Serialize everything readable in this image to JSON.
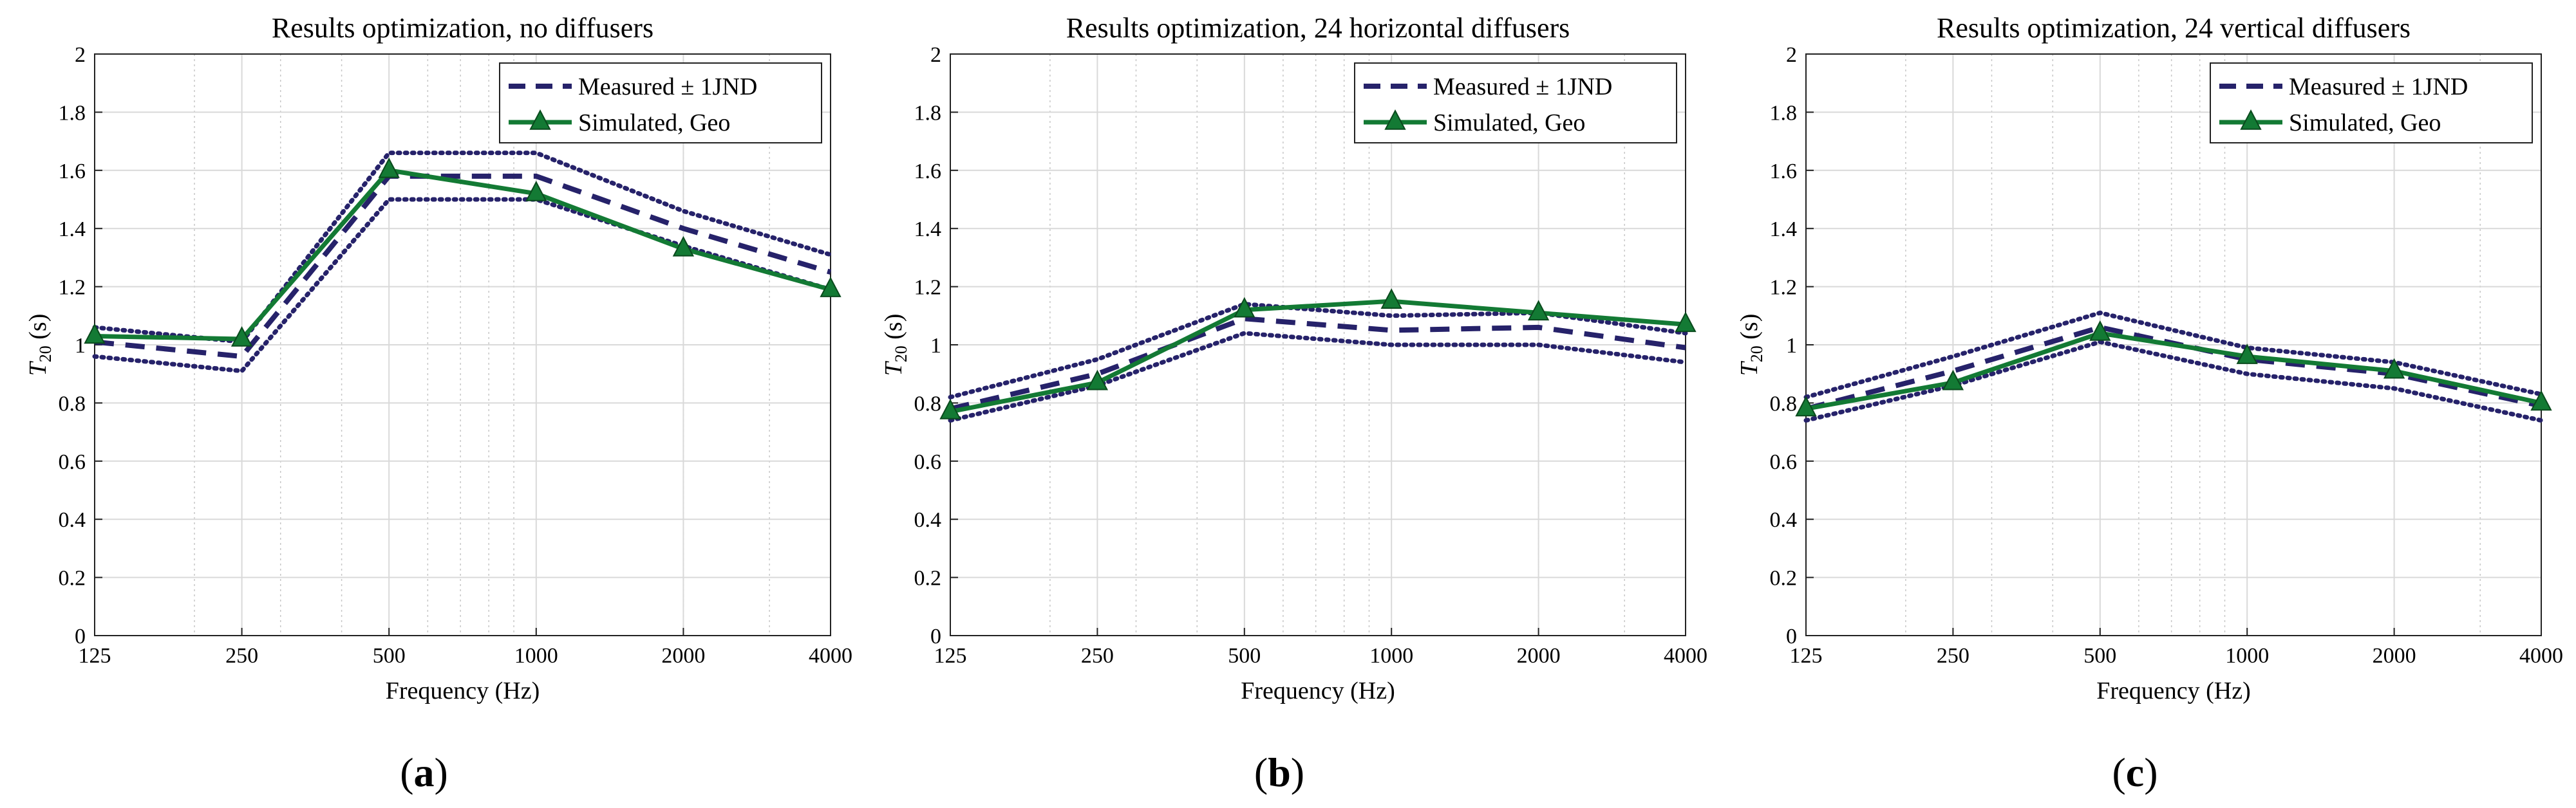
{
  "colors": {
    "measured": "#26226a",
    "simulated": "#137a34",
    "grid": "#d9d9d9",
    "gridMinor": "#c7c7c7",
    "axis": "#222222"
  },
  "chart_data": [
    {
      "type": "line",
      "panel_label": "a",
      "title": "Results optimization, no diffusers",
      "xlabel": "Frequency (Hz)",
      "ylabel_main": "T",
      "ylabel_sub": "20",
      "ylabel_unit": "(s)",
      "categories": [
        "125",
        "250",
        "500",
        "1000",
        "2000",
        "4000"
      ],
      "x": [
        125,
        250,
        500,
        1000,
        2000,
        4000
      ],
      "xscale": "log",
      "ylim": [
        0,
        2
      ],
      "yticks": [
        "0",
        "0.2",
        "0.4",
        "0.6",
        "0.8",
        "1",
        "1.2",
        "1.4",
        "1.6",
        "1.8",
        "2"
      ],
      "grid": true,
      "legend_position": "top-right",
      "legend": [
        "Measured ± 1JND",
        "Simulated, Geo"
      ],
      "series": [
        {
          "name": "Measured ± 1JND",
          "values": [
            1.01,
            0.96,
            1.58,
            1.58,
            1.4,
            1.25
          ]
        },
        {
          "name": "Measured + 1JND",
          "values": [
            1.06,
            1.01,
            1.66,
            1.66,
            1.46,
            1.31
          ]
        },
        {
          "name": "Measured - 1JND",
          "values": [
            0.96,
            0.91,
            1.5,
            1.5,
            1.34,
            1.19
          ]
        },
        {
          "name": "Simulated, Geo",
          "values": [
            1.03,
            1.02,
            1.6,
            1.52,
            1.33,
            1.19
          ]
        }
      ]
    },
    {
      "type": "line",
      "panel_label": "b",
      "title": "Results optimization, 24 horizontal diffusers",
      "xlabel": "Frequency (Hz)",
      "ylabel_main": "T",
      "ylabel_sub": "20",
      "ylabel_unit": "(s)",
      "categories": [
        "125",
        "250",
        "500",
        "1000",
        "2000",
        "4000"
      ],
      "x": [
        125,
        250,
        500,
        1000,
        2000,
        4000
      ],
      "xscale": "log",
      "ylim": [
        0,
        2
      ],
      "yticks": [
        "0",
        "0.2",
        "0.4",
        "0.6",
        "0.8",
        "1",
        "1.2",
        "1.4",
        "1.6",
        "1.8",
        "2"
      ],
      "grid": true,
      "legend_position": "top-right",
      "legend": [
        "Measured ± 1JND",
        "Simulated, Geo"
      ],
      "series": [
        {
          "name": "Measured ± 1JND",
          "values": [
            0.78,
            0.9,
            1.09,
            1.05,
            1.06,
            0.99
          ]
        },
        {
          "name": "Measured + 1JND",
          "values": [
            0.82,
            0.95,
            1.14,
            1.1,
            1.11,
            1.04
          ]
        },
        {
          "name": "Measured - 1JND",
          "values": [
            0.74,
            0.86,
            1.04,
            1.0,
            1.0,
            0.94
          ]
        },
        {
          "name": "Simulated, Geo",
          "values": [
            0.77,
            0.87,
            1.12,
            1.15,
            1.11,
            1.07
          ]
        }
      ]
    },
    {
      "type": "line",
      "panel_label": "c",
      "title": "Results optimization, 24 vertical diffusers",
      "xlabel": "Frequency (Hz)",
      "ylabel_main": "T",
      "ylabel_sub": "20",
      "ylabel_unit": "(s)",
      "categories": [
        "125",
        "250",
        "500",
        "1000",
        "2000",
        "4000"
      ],
      "x": [
        125,
        250,
        500,
        1000,
        2000,
        4000
      ],
      "xscale": "log",
      "ylim": [
        0,
        2
      ],
      "yticks": [
        "0",
        "0.2",
        "0.4",
        "0.6",
        "0.8",
        "1",
        "1.2",
        "1.4",
        "1.6",
        "1.8",
        "2"
      ],
      "grid": true,
      "legend_position": "top-right",
      "legend": [
        "Measured ± 1JND",
        "Simulated, Geo"
      ],
      "series": [
        {
          "name": "Measured ± 1JND",
          "values": [
            0.78,
            0.91,
            1.06,
            0.95,
            0.9,
            0.79
          ]
        },
        {
          "name": "Measured + 1JND",
          "values": [
            0.82,
            0.96,
            1.11,
            0.99,
            0.94,
            0.83
          ]
        },
        {
          "name": "Measured - 1JND",
          "values": [
            0.74,
            0.86,
            1.01,
            0.9,
            0.85,
            0.74
          ]
        },
        {
          "name": "Simulated, Geo",
          "values": [
            0.78,
            0.87,
            1.04,
            0.96,
            0.91,
            0.8
          ]
        }
      ]
    }
  ]
}
